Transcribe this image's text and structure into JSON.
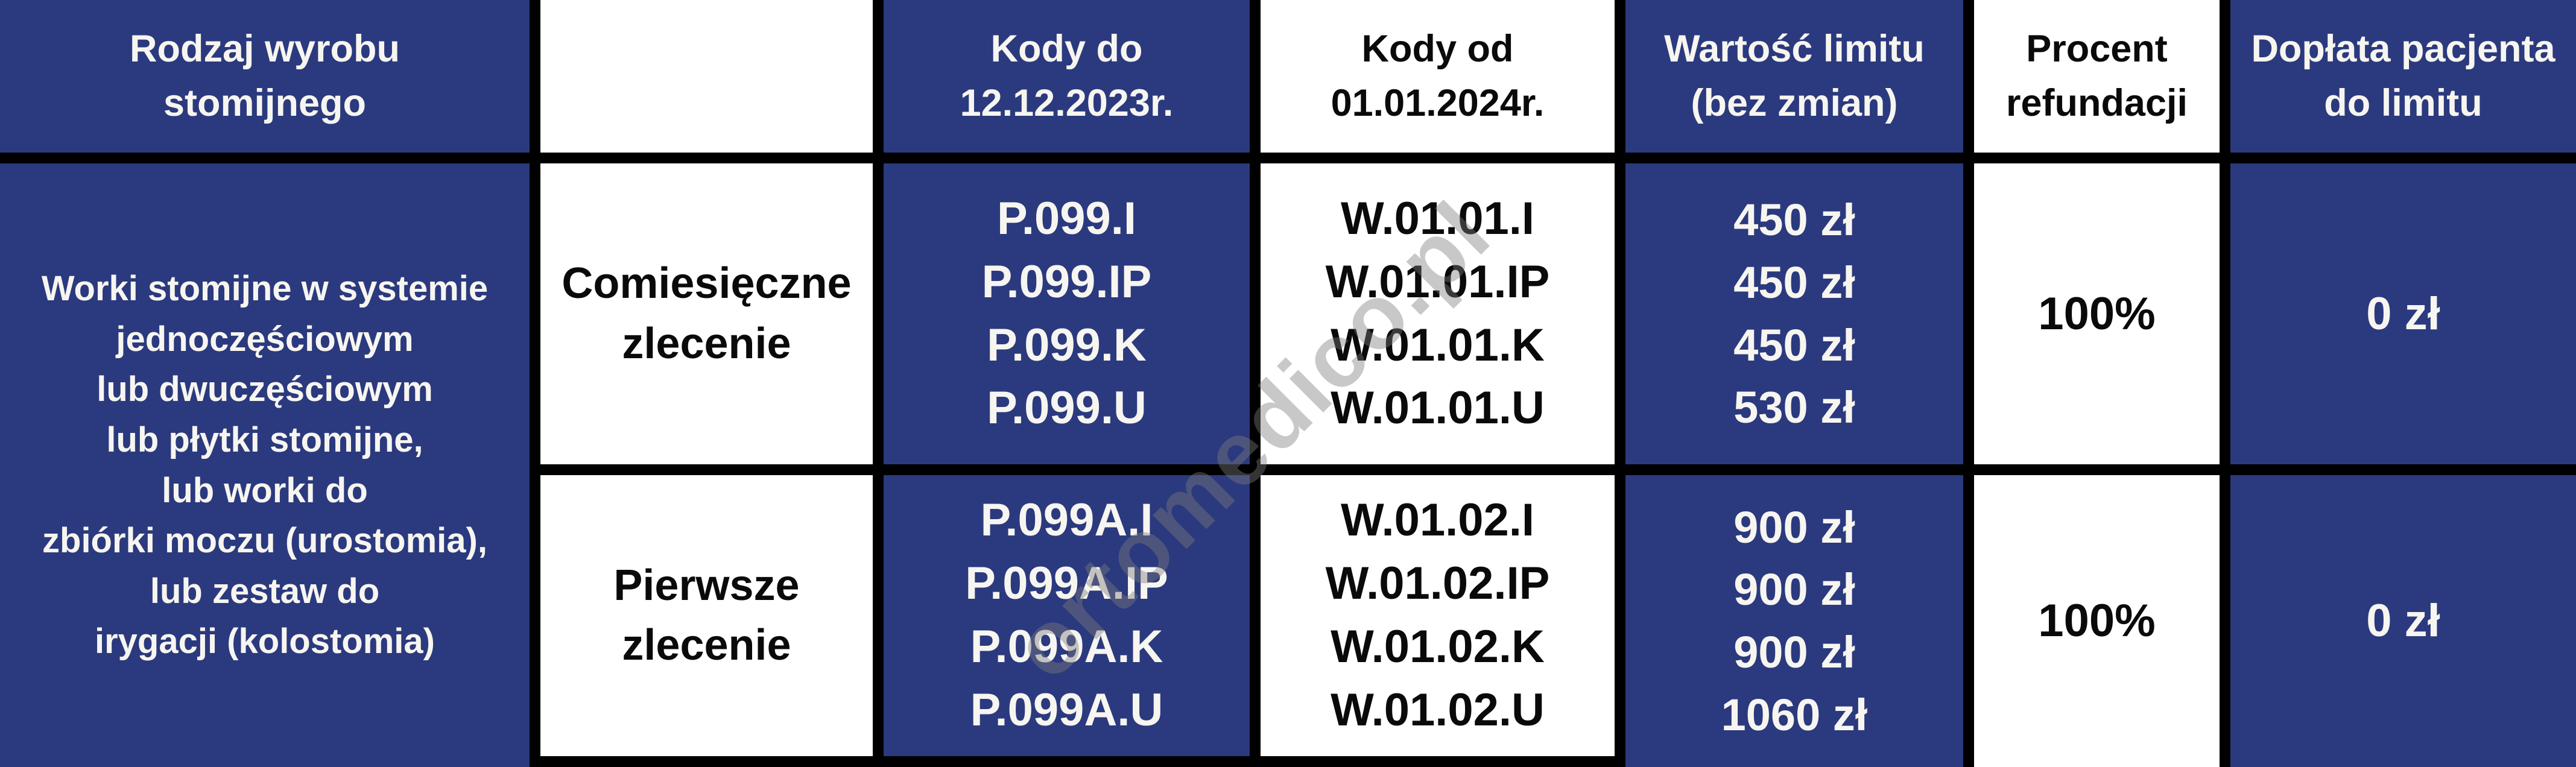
{
  "colors": {
    "navy": "#2b3a7e",
    "white": "#ffffff",
    "border": "#000000",
    "watermark_gray": "#7d7d7d"
  },
  "watermark": {
    "text": "ortomedico.pl"
  },
  "table": {
    "header": {
      "product_type": "Rodzaj wyrobu\nstomijnego",
      "order_type": "",
      "codes_until": "Kody do\n12.12.2023r.",
      "codes_from": "Kody od\n01.01.2024r.",
      "limit_value": "Wartość limitu\n(bez zmian)",
      "refund_percent": "Procent\nrefundacji",
      "patient_copay": "Dopłata pacjenta\ndo limitu"
    },
    "product_description": "Worki stomijne w systemie\njednoczęściowym\nlub dwuczęściowym\nlub płytki stomijne,\nlub worki do\nzbiórki moczu (urostomia),\nlub zestaw do\nirygacji (kolostomia)",
    "rows": [
      {
        "order_type": "Comiesięczne\nzlecenie",
        "codes_old": "P.099.I\nP.099.IP\nP.099.K\nP.099.U",
        "codes_new": "W.01.01.I\nW.01.01.IP\nW.01.01.K\nW.01.01.U",
        "limit_values": "450 zł\n450 zł\n450 zł\n530 zł",
        "refund_percent": "100%",
        "patient_copay": "0 zł"
      },
      {
        "order_type": "Pierwsze\nzlecenie",
        "codes_old": "P.099A.I\nP.099A.IP\nP.099A.K\nP.099A.U",
        "codes_new": "W.01.02.I\nW.01.02.IP\nW.01.02.K\nW.01.02.U",
        "limit_values": "900 zł\n900 zł\n900 zł\n1060 zł",
        "refund_percent": "100%",
        "patient_copay": "0 zł"
      }
    ]
  }
}
